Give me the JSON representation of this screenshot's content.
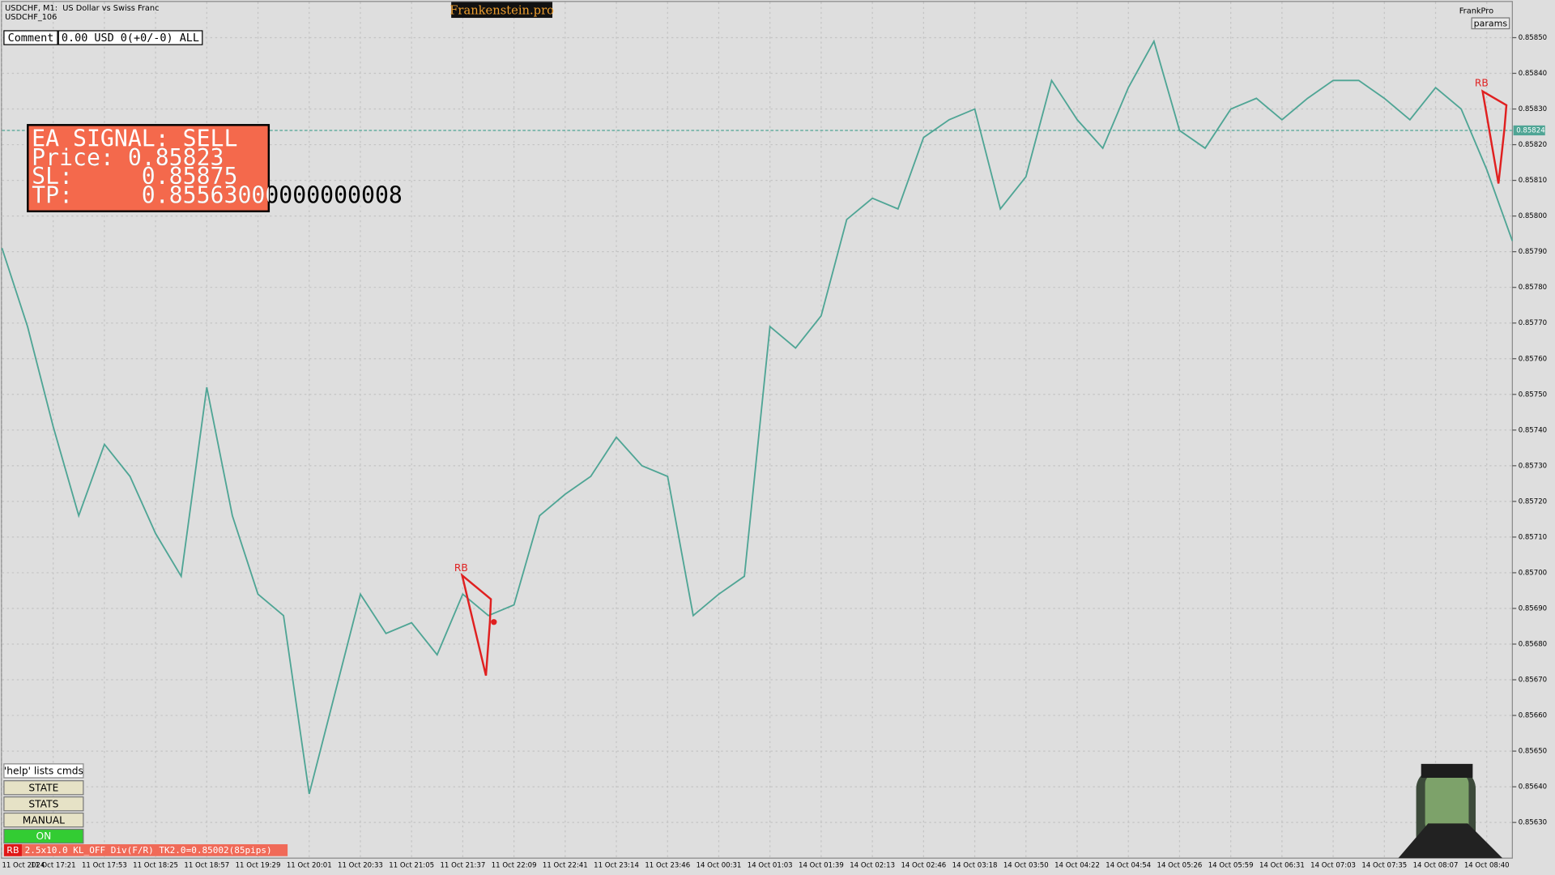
{
  "header": {
    "symbol": "USDCHF, M1:  US Dollar vs Swiss Franc",
    "subtitle": "USDCHF_106",
    "brand": "Frankenstein.pro",
    "account": "FrankPro",
    "params": "params"
  },
  "comment": {
    "label": "Comment",
    "value": "0.00 USD 0(+0/-0) ALL"
  },
  "signal": {
    "title": "EA SIGNAL: SELL",
    "price": "Price: 0.85823",
    "sl": "SL:     0.85875",
    "tp": "TP:     0.85563000000000008"
  },
  "buttons": {
    "help": "'help' lists cmds",
    "items": [
      "STATE",
      "STATS",
      "MANUAL",
      "ON"
    ]
  },
  "status": {
    "tag": "RB",
    "text": "2.5x10.0 KL_OFF Div(F/R) TK2.0=0.85002(85pips)"
  },
  "chart_data": {
    "type": "line",
    "categories": [
      "11 Oct 2024",
      null,
      "11 Oct 17:21",
      null,
      "11 Oct 17:53",
      null,
      "11 Oct 18:25",
      null,
      "11 Oct 18:57",
      null,
      "11 Oct 19:29",
      null,
      "11 Oct 20:01",
      null,
      "11 Oct 20:33",
      null,
      "11 Oct 21:05",
      null,
      "11 Oct 21:37",
      null,
      "11 Oct 22:09",
      null,
      "11 Oct 22:41",
      null,
      "11 Oct 23:14",
      null,
      "11 Oct 23:46",
      null,
      "14 Oct 00:31",
      null,
      "14 Oct 01:03",
      null,
      "14 Oct 01:39",
      null,
      "14 Oct 02:13",
      null,
      "14 Oct 02:46",
      null,
      "14 Oct 03:18",
      null,
      "14 Oct 03:50",
      null,
      "14 Oct 04:22",
      null,
      "14 Oct 04:54",
      null,
      "14 Oct 05:26",
      null,
      "14 Oct 05:59",
      null,
      "14 Oct 06:31",
      null,
      "14 Oct 07:03",
      null,
      "14 Oct 07:35",
      null,
      "14 Oct 08:07",
      null,
      "14 Oct 08:40",
      null
    ],
    "values": [
      0.85791,
      0.85769,
      0.85741,
      0.85716,
      0.85736,
      0.85727,
      0.85711,
      0.85699,
      0.85752,
      0.85716,
      0.85694,
      0.85688,
      0.85638,
      0.85666,
      0.85694,
      0.85683,
      0.85686,
      0.85677,
      0.85694,
      0.85688,
      0.85691,
      0.85716,
      0.85722,
      0.85727,
      0.85738,
      0.8573,
      0.85727,
      0.85688,
      0.85694,
      0.85699,
      0.85769,
      0.85763,
      0.85772,
      0.85799,
      0.85805,
      0.85802,
      0.85822,
      0.85827,
      0.8583,
      0.85802,
      0.85811,
      0.85838,
      0.85827,
      0.85819,
      0.85836,
      0.85849,
      0.85824,
      0.85819,
      0.8583,
      0.85833,
      0.85827,
      0.85833,
      0.85838,
      0.85838,
      0.85833,
      0.85827,
      0.85836,
      0.8583,
      0.85813,
      0.85793
    ],
    "color": "#4fa595",
    "ylim": [
      0.8562,
      0.8586
    ],
    "yticks": [
      {
        "value": 0.8585,
        "label": "0.85850"
      },
      {
        "value": 0.8584,
        "label": "0.85840"
      },
      {
        "value": 0.8583,
        "label": "0.85830"
      },
      {
        "value": 0.8582,
        "label": "0.85820"
      },
      {
        "value": 0.8581,
        "label": "0.85810"
      },
      {
        "value": 0.858,
        "label": "0.85800"
      },
      {
        "value": 0.8579,
        "label": "0.85790"
      },
      {
        "value": 0.8578,
        "label": "0.85780"
      },
      {
        "value": 0.8577,
        "label": "0.85770"
      },
      {
        "value": 0.8576,
        "label": "0.85760"
      },
      {
        "value": 0.8575,
        "label": "0.85750"
      },
      {
        "value": 0.8574,
        "label": "0.85740"
      },
      {
        "value": 0.8573,
        "label": "0.85730"
      },
      {
        "value": 0.8572,
        "label": "0.85720"
      },
      {
        "value": 0.8571,
        "label": "0.85710"
      },
      {
        "value": 0.857,
        "label": "0.85700"
      },
      {
        "value": 0.8569,
        "label": "0.85690"
      },
      {
        "value": 0.8568,
        "label": "0.85680"
      },
      {
        "value": 0.8567,
        "label": "0.85670"
      },
      {
        "value": 0.8566,
        "label": "0.85660"
      },
      {
        "value": 0.8565,
        "label": "0.85650"
      },
      {
        "value": 0.8564,
        "label": "0.85640"
      },
      {
        "value": 0.8563,
        "label": "0.85630"
      }
    ],
    "grid": true,
    "current_price": {
      "value": 0.85824,
      "label": "0.85824"
    },
    "annotations": [
      "RB",
      "RB"
    ]
  }
}
